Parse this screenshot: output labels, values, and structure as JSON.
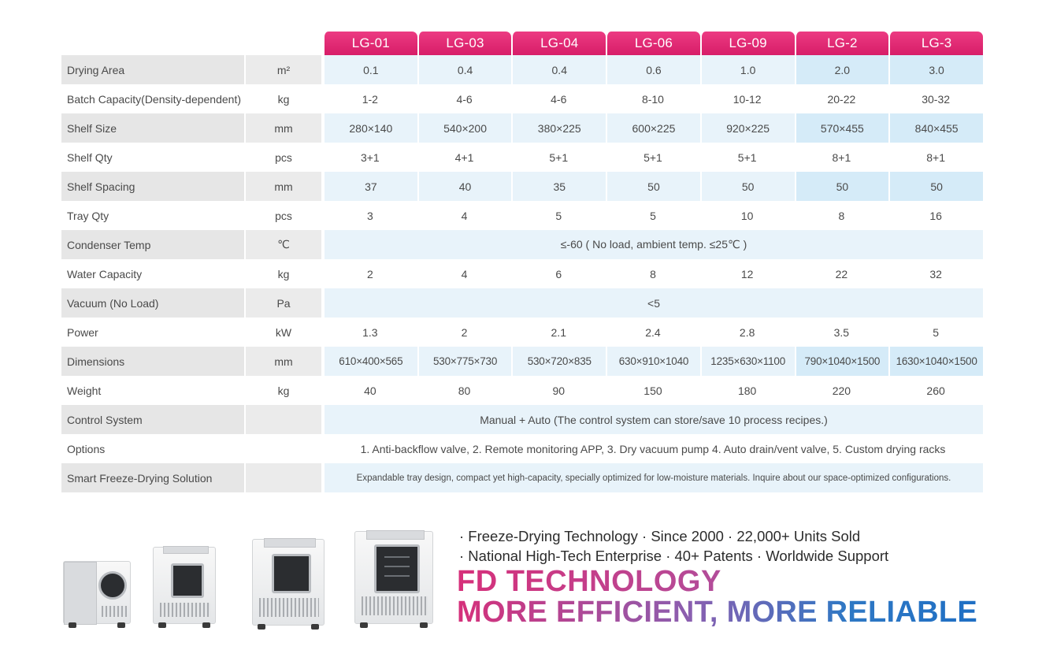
{
  "models": [
    "LG-01",
    "LG-03",
    "LG-04",
    "LG-06",
    "LG-09",
    "LG-2",
    "LG-3"
  ],
  "rows": [
    {
      "label": "Drying Area",
      "unit": "m²",
      "values": [
        "0.1",
        "0.4",
        "0.4",
        "0.6",
        "1.0",
        "2.0",
        "3.0"
      ]
    },
    {
      "label": "Batch Capacity(Density-dependent)",
      "unit": "kg",
      "values": [
        "1-2",
        "4-6",
        "4-6",
        "8-10",
        "10-12",
        "20-22",
        "30-32"
      ]
    },
    {
      "label": "Shelf Size",
      "unit": "mm",
      "values": [
        "280×140",
        "540×200",
        "380×225",
        "600×225",
        "920×225",
        "570×455",
        "840×455"
      ]
    },
    {
      "label": "Shelf Qty",
      "unit": "pcs",
      "values": [
        "3+1",
        "4+1",
        "5+1",
        "5+1",
        "5+1",
        "8+1",
        "8+1"
      ]
    },
    {
      "label": "Shelf Spacing",
      "unit": "mm",
      "values": [
        "37",
        "40",
        "35",
        "50",
        "50",
        "50",
        "50"
      ]
    },
    {
      "label": "Tray Qty",
      "unit": "pcs",
      "values": [
        "3",
        "4",
        "5",
        "5",
        "10",
        "8",
        "16"
      ]
    },
    {
      "label": "Condenser Temp",
      "unit": "℃",
      "span": "≤-60 ( No load, ambient temp. ≤25℃ )"
    },
    {
      "label": "Water Capacity",
      "unit": "kg",
      "values": [
        "2",
        "4",
        "6",
        "8",
        "12",
        "22",
        "32"
      ]
    },
    {
      "label": "Vacuum (No Load)",
      "unit": "Pa",
      "span": "<5"
    },
    {
      "label": "Power",
      "unit": "kW",
      "values": [
        "1.3",
        "2",
        "2.1",
        "2.4",
        "2.8",
        "3.5",
        "5"
      ]
    },
    {
      "label": "Dimensions",
      "unit": "mm",
      "values": [
        "610×400×565",
        "530×775×730",
        "530×720×835",
        "630×910×1040",
        "1235×630×1100",
        "790×1040×1500",
        "1630×1040×1500"
      ]
    },
    {
      "label": "Weight",
      "unit": "kg",
      "values": [
        "40",
        "80",
        "90",
        "150",
        "180",
        "220",
        "260"
      ]
    },
    {
      "label": "Control System",
      "unit": "",
      "span": "Manual + Auto (The control system can store/save 10 process recipes.)"
    },
    {
      "label": "Options",
      "unit": "",
      "span": "1. Anti-backflow valve, 2. Remote monitoring APP, 3. Dry vacuum pump 4. Auto drain/vent valve, 5. Custom drying racks"
    },
    {
      "label": "Smart Freeze-Drying Solution",
      "unit": "",
      "span": "Expandable tray design, compact yet high-capacity, specially optimized for low-moisture materials. Inquire about our space-optimized configurations."
    }
  ],
  "banner": {
    "tagline1": "· Freeze-Drying Technology · Since 2000 · 22,000+ Units Sold",
    "tagline2": "· National High-Tech Enterprise · 40+ Patents · Worldwide Support",
    "title": "FD TECHNOLOGY",
    "subtitle": "MORE EFFICIENT, MORE RELIABLE"
  },
  "colors": {
    "header_pink": "#d71d68",
    "row_shade_blue": "#e8f3fa",
    "row_shade_grey": "#e6e6e6",
    "accent_blue": "#1f6fc4"
  }
}
